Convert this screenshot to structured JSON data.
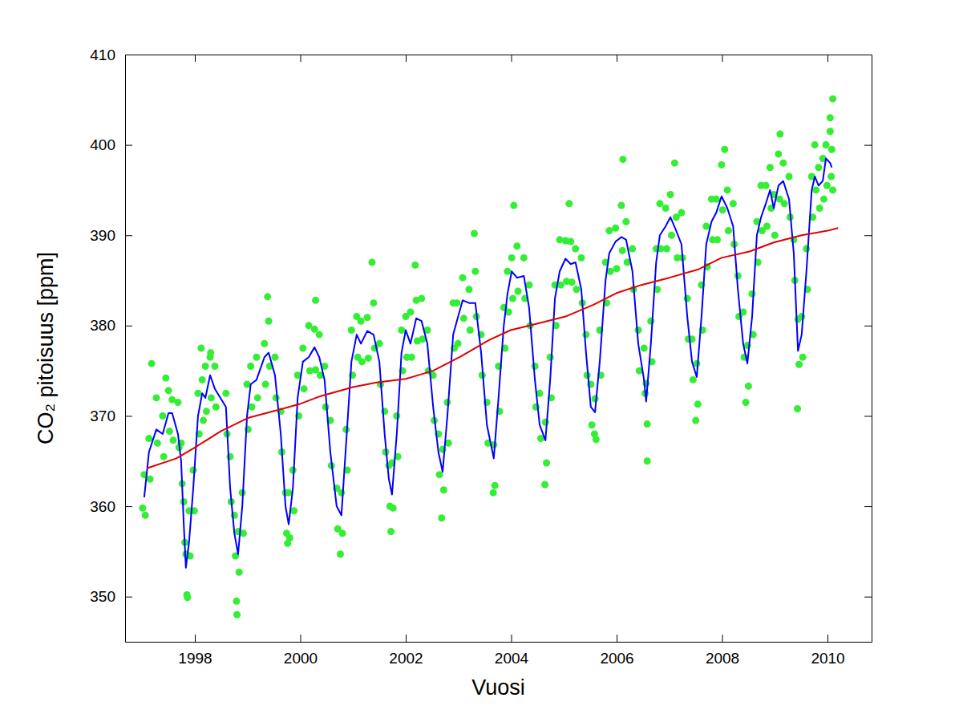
{
  "chart_data": {
    "type": "line",
    "x_label": "Vuosi",
    "y_label": "CO₂ pitoisuus [ppm]",
    "xlim": [
      1996.677,
      2010.836
    ],
    "xticks": [
      1998,
      2000,
      2002,
      2004,
      2006,
      2008,
      2010
    ],
    "ylim": [
      345,
      410
    ],
    "yticks": [
      350,
      360,
      370,
      380,
      390,
      400,
      410
    ],
    "grid": false,
    "series": [
      {
        "type": "scatter",
        "color": "#33ee33",
        "marker": "circle",
        "x": [
          1997.04,
          1997.06,
          1997.13,
          1997.15,
          1997.27,
          1997.29,
          1997.39,
          1997.41,
          1997.5,
          1997.52,
          1997.57,
          1997.59,
          1997.68,
          1997.7,
          1997.74,
          1997.76,
          1997.79,
          1997.81,
          1997.83,
          1997.85,
          1997.89,
          1997.91,
          1997.97,
          1997.99,
          1998.06,
          1998.08,
          1998.14,
          1998.16,
          1998.2,
          1998.22,
          1998.29,
          1998.31,
          1998.38,
          1998.4,
          1998.59,
          1998.61,
          1998.67,
          1998.69,
          1998.75,
          1998.77,
          1998.82,
          1998.84,
          1998.9,
          1998.92,
          1998.99,
          1999.01,
          1999.06,
          1999.08,
          1999.17,
          1999.19,
          1999.32,
          1999.34,
          1999.4,
          1999.42,
          1999.52,
          1999.54,
          1999.63,
          1999.65,
          1999.72,
          1999.74,
          1999.78,
          1999.8,
          1999.86,
          1999.88,
          1999.95,
          1999.97,
          2000.05,
          2000.07,
          2000.16,
          2000.18,
          2000.27,
          2000.29,
          2000.36,
          2000.38,
          2000.46,
          2000.48,
          2000.57,
          2000.59,
          2000.69,
          2000.71,
          2000.78,
          2000.8,
          2000.87,
          2000.89,
          2000.97,
          2000.99,
          2001.07,
          2001.09,
          2001.15,
          2001.17,
          2001.27,
          2001.29,
          2001.39,
          2001.41,
          2001.5,
          2001.52,
          2001.6,
          2001.62,
          2001.68,
          2001.7,
          2001.74,
          2001.76,
          2001.83,
          2001.85,
          2001.92,
          2001.94,
          2002.0,
          2002.02,
          2002.09,
          2002.11,
          2002.2,
          2002.22,
          2002.3,
          2002.32,
          2002.41,
          2002.43,
          2002.52,
          2002.54,
          2002.62,
          2002.64,
          2002.7,
          2002.72,
          2002.79,
          2002.81,
          2002.9,
          2002.92,
          2002.97,
          2002.99,
          2003.08,
          2003.1,
          2003.2,
          2003.22,
          2003.32,
          2003.34,
          2003.43,
          2003.45,
          2003.54,
          2003.56,
          2003.67,
          2003.69,
          2003.76,
          2003.78,
          2003.86,
          2003.88,
          2003.93,
          2003.95,
          2004.01,
          2004.03,
          2004.11,
          2004.13,
          2004.24,
          2004.26,
          2004.34,
          2004.36,
          2004.45,
          2004.47,
          2004.54,
          2004.56,
          2004.65,
          2004.67,
          2004.74,
          2004.76,
          2004.83,
          2004.85,
          2004.92,
          2004.94,
          2005.03,
          2005.05,
          2005.13,
          2005.15,
          2005.22,
          2005.24,
          2005.33,
          2005.35,
          2005.42,
          2005.44,
          2005.51,
          2005.53,
          2005.59,
          2005.61,
          2005.68,
          2005.7,
          2005.79,
          2005.81,
          2005.86,
          2005.88,
          2005.98,
          2006.0,
          2006.09,
          2006.11,
          2006.18,
          2006.2,
          2006.3,
          2006.32,
          2006.41,
          2006.43,
          2006.52,
          2006.54,
          2006.56,
          2006.58,
          2006.65,
          2006.67,
          2006.75,
          2006.77,
          2006.82,
          2006.84,
          2006.93,
          2006.95,
          2007.02,
          2007.04,
          2007.13,
          2007.15,
          2007.23,
          2007.25,
          2007.34,
          2007.36,
          2007.43,
          2007.45,
          2007.52,
          2007.54,
          2007.61,
          2007.63,
          2007.7,
          2007.72,
          2007.8,
          2007.82,
          2007.89,
          2007.91,
          2007.99,
          2008.01,
          2008.1,
          2008.12,
          2008.21,
          2008.23,
          2008.3,
          2008.32,
          2008.4,
          2008.42,
          2008.48,
          2008.5,
          2008.57,
          2008.59,
          2008.66,
          2008.68,
          2008.74,
          2008.76,
          2008.83,
          2008.85,
          2008.91,
          2008.93,
          2008.98,
          2009.0,
          2009.07,
          2009.09,
          2009.16,
          2009.18,
          2009.27,
          2009.29,
          2009.36,
          2009.38,
          2009.44,
          2009.46,
          2009.51,
          2009.53,
          2009.6,
          2009.62,
          2009.7,
          2009.72,
          2009.76,
          2009.78,
          2009.83,
          2009.85,
          2009.91,
          2009.93,
          2009.97,
          2009.99,
          2010.05,
          2010.07,
          2010.08,
          2010.1,
          1997.01,
          1997.18,
          1997.45,
          1997.86,
          1998.12,
          1998.3,
          1998.8,
          1998.79,
          1999.38,
          1999.76,
          2000.29,
          2000.76,
          2001.36,
          2001.72,
          2002.18,
          2002.68,
          2003.3,
          2003.66,
          2004.05,
          2004.64,
          2005.1,
          2005.58,
          2006.12,
          2006.58,
          2007.1,
          2007.5,
          2008.05,
          2008.45,
          2009.1,
          2009.43,
          2010.1,
          2010.05
        ],
        "values": [
          363.5,
          359,
          367.5,
          363,
          372,
          367,
          370,
          365.5,
          372.8,
          368.3,
          371.8,
          367.3,
          371.5,
          366.5,
          367,
          362.5,
          360.5,
          356,
          354.7,
          350.2,
          359.5,
          354.5,
          364,
          359.5,
          372.5,
          368,
          374,
          369.5,
          375.5,
          370.5,
          376.5,
          372,
          375.5,
          371,
          372.5,
          368,
          365.5,
          360.5,
          359,
          354.5,
          357.2,
          352.7,
          361.5,
          357,
          373.5,
          368.5,
          375.5,
          371,
          376.5,
          372,
          378,
          373.5,
          380.5,
          375.5,
          376.5,
          372,
          370.5,
          366,
          361.5,
          357,
          361.5,
          356.5,
          364,
          359.5,
          374.5,
          370,
          377.5,
          373,
          380,
          375,
          379.6,
          375.1,
          379,
          374.5,
          375.5,
          371,
          369.5,
          364.5,
          362,
          357.5,
          361.5,
          357,
          368.5,
          364,
          379.5,
          374.5,
          381,
          376.5,
          380.5,
          376,
          380.9,
          376.4,
          382.5,
          377.5,
          378,
          373.5,
          370.5,
          366,
          364.5,
          360,
          364.8,
          359.8,
          370,
          365.5,
          379.5,
          375,
          381,
          376.5,
          381.5,
          376.5,
          382.8,
          378.3,
          383,
          378.5,
          379.5,
          375,
          374.5,
          369.5,
          368,
          363.5,
          366.3,
          361.8,
          371.5,
          367,
          382.5,
          377.5,
          382.5,
          378,
          385.3,
          380.8,
          384,
          379.5,
          386,
          381,
          379,
          374.5,
          371.5,
          367,
          366.8,
          362.3,
          375.5,
          370.5,
          382,
          377.5,
          386,
          381.5,
          387.5,
          383,
          388.8,
          383.8,
          387.5,
          383,
          384.5,
          380,
          375.5,
          371,
          372.5,
          367.5,
          369.3,
          364.8,
          376.5,
          372,
          384.5,
          380,
          389.5,
          384.5,
          389.4,
          384.9,
          389.3,
          384.8,
          388.5,
          384,
          387.5,
          382.5,
          379,
          374.5,
          373.5,
          369,
          371.9,
          367.4,
          379.5,
          374.5,
          387,
          382.5,
          390.5,
          386,
          390.8,
          386.3,
          393.3,
          388.3,
          391.5,
          387,
          388.5,
          384,
          379.5,
          375,
          377.5,
          372.5,
          373.6,
          369.1,
          380.5,
          376,
          388.5,
          384,
          393.5,
          388.5,
          393,
          388.5,
          394.5,
          390,
          392,
          387.5,
          392.5,
          387.5,
          383,
          378.5,
          378.5,
          374,
          375.8,
          371.3,
          384.5,
          379.5,
          391,
          386.5,
          394,
          389.5,
          394,
          389.5,
          397.8,
          392.8,
          395,
          390.5,
          393.5,
          389,
          385.5,
          381,
          381.5,
          376.5,
          377.8,
          373.3,
          383.5,
          379,
          391.5,
          387,
          395.5,
          390.5,
          395.5,
          391,
          397.5,
          393,
          394.5,
          390,
          399,
          394,
          398,
          393.5,
          396.5,
          392,
          389.5,
          385,
          380.7,
          375.7,
          381,
          376.5,
          388.5,
          384,
          396.5,
          392,
          400,
          395,
          397.5,
          393,
          398.5,
          394,
          400,
          395.5,
          401.5,
          396.5,
          399.5,
          395,
          359.8,
          375.8,
          374.2,
          349.9,
          377.5,
          377,
          348,
          349.5,
          383.2,
          355.9,
          382.8,
          354.7,
          387,
          357.2,
          386.7,
          358.7,
          390.2,
          361.5,
          393.3,
          362.4,
          393.5,
          368,
          398.4,
          365,
          398,
          369.5,
          399.5,
          371.5,
          401.2,
          370.8,
          405.1,
          403
        ]
      },
      {
        "type": "line",
        "color": "#0000ff",
        "line_style": "solid",
        "x": [
          1997.04,
          1997.13,
          1997.27,
          1997.39,
          1997.5,
          1997.57,
          1997.68,
          1997.74,
          1997.79,
          1997.83,
          1997.89,
          1997.97,
          1998.06,
          1998.14,
          1998.2,
          1998.29,
          1998.38,
          1998.59,
          1998.67,
          1998.75,
          1998.82,
          1998.9,
          1998.99,
          1999.06,
          1999.17,
          1999.32,
          1999.4,
          1999.52,
          1999.63,
          1999.72,
          1999.78,
          1999.86,
          1999.95,
          2000.05,
          2000.16,
          2000.27,
          2000.36,
          2000.46,
          2000.57,
          2000.69,
          2000.78,
          2000.87,
          2000.97,
          2001.07,
          2001.15,
          2001.27,
          2001.39,
          2001.5,
          2001.6,
          2001.68,
          2001.74,
          2001.83,
          2001.92,
          2002.0,
          2002.09,
          2002.2,
          2002.3,
          2002.41,
          2002.52,
          2002.62,
          2002.7,
          2002.79,
          2002.9,
          2002.97,
          2003.08,
          2003.2,
          2003.32,
          2003.43,
          2003.54,
          2003.67,
          2003.76,
          2003.86,
          2003.93,
          2004.01,
          2004.11,
          2004.24,
          2004.34,
          2004.45,
          2004.54,
          2004.65,
          2004.74,
          2004.83,
          2004.92,
          2005.03,
          2005.13,
          2005.22,
          2005.33,
          2005.42,
          2005.51,
          2005.59,
          2005.68,
          2005.79,
          2005.86,
          2005.98,
          2006.09,
          2006.18,
          2006.3,
          2006.41,
          2006.52,
          2006.56,
          2006.65,
          2006.75,
          2006.82,
          2006.93,
          2007.02,
          2007.13,
          2007.23,
          2007.34,
          2007.43,
          2007.52,
          2007.61,
          2007.7,
          2007.8,
          2007.89,
          2007.99,
          2008.1,
          2008.21,
          2008.3,
          2008.4,
          2008.48,
          2008.57,
          2008.66,
          2008.74,
          2008.83,
          2008.91,
          2008.98,
          2009.07,
          2009.16,
          2009.27,
          2009.36,
          2009.44,
          2009.51,
          2009.6,
          2009.7,
          2009.76,
          2009.83,
          2009.91,
          2009.97,
          2010.05,
          2010.08
        ],
        "values": [
          361,
          366,
          368.5,
          368,
          370.3,
          370.3,
          368,
          365,
          358,
          353.2,
          356,
          362,
          370,
          372.5,
          372,
          374.5,
          373,
          371,
          362,
          357,
          354.7,
          360,
          370,
          373.5,
          374,
          376.5,
          377,
          374.5,
          368,
          360,
          358,
          362,
          372,
          376,
          376.5,
          377.6,
          376.5,
          374,
          366,
          360,
          359,
          367,
          376,
          379,
          378,
          379.4,
          379,
          376,
          368,
          363,
          361.3,
          368,
          377,
          379.5,
          378,
          380.8,
          380.5,
          378,
          371,
          366,
          363.8,
          370,
          379,
          380.5,
          382.8,
          382.5,
          382.5,
          377,
          369,
          365.3,
          372,
          380,
          383.5,
          386,
          385.3,
          385.5,
          382,
          374,
          369,
          367.3,
          374,
          383,
          386,
          387.4,
          386.8,
          387,
          384,
          377,
          371,
          370.4,
          376,
          385,
          388,
          389.3,
          389.8,
          389.5,
          386,
          378,
          374,
          371.6,
          378,
          387,
          390,
          391,
          392,
          390.5,
          389,
          381,
          376,
          374.3,
          381,
          389,
          391.5,
          392.5,
          394.3,
          393,
          391,
          384,
          378,
          375.8,
          381,
          390,
          392,
          393.5,
          395,
          393,
          395.5,
          396,
          394,
          388,
          377.2,
          379,
          386,
          395,
          396.5,
          395.5,
          396,
          398.5,
          398,
          397.5
        ]
      },
      {
        "type": "line",
        "color": "#e00000",
        "line_style": "solid",
        "x": [
          1997.09,
          1997.65,
          1998.0,
          1998.49,
          1999.02,
          1999.48,
          1999.98,
          2000.39,
          2001.0,
          2001.45,
          2002.0,
          2002.52,
          2003.05,
          2003.58,
          2003.99,
          2004.49,
          2005.03,
          2005.56,
          2006.0,
          2006.47,
          2007.0,
          2007.54,
          2007.99,
          2008.52,
          2008.98,
          2009.51,
          2010.0,
          2010.2
        ],
        "values": [
          364.2,
          365.3,
          366.5,
          368.3,
          369.8,
          370.5,
          371.3,
          372.2,
          373.2,
          373.7,
          374.1,
          375,
          376.6,
          378.4,
          379.5,
          380.2,
          381.0,
          382.3,
          383.6,
          384.5,
          385.3,
          386.2,
          387.5,
          388.2,
          389.2,
          390.0,
          390.5,
          390.8
        ]
      }
    ]
  }
}
